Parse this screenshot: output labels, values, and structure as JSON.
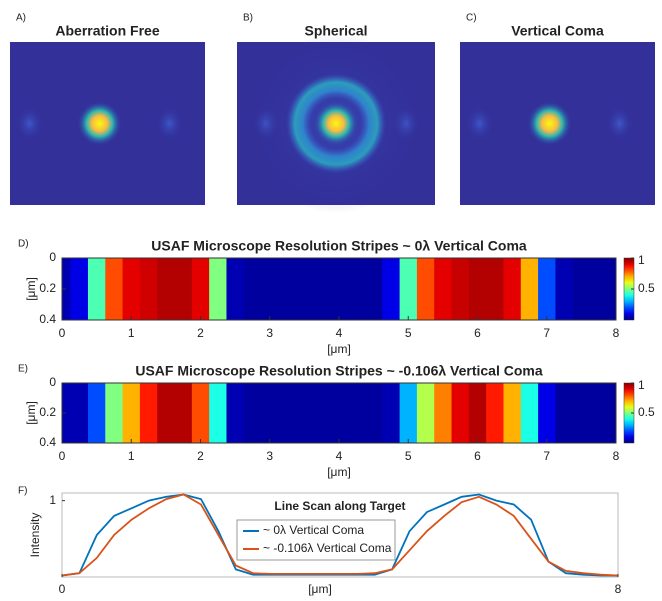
{
  "chart_data": [
    {
      "type": "image",
      "panel": "A)",
      "title": "Aberration Free"
    },
    {
      "type": "image",
      "panel": "B)",
      "title": "Spherical"
    },
    {
      "type": "image",
      "panel": "C)",
      "title": "Vertical Coma"
    },
    {
      "type": "heatmap",
      "panel": "D)",
      "title": "USAF Microscope Resolution Stripes ~ 0λ Vertical Coma",
      "xlabel": "[μm]",
      "ylabel": "[μm]",
      "x": [
        0,
        0.25,
        0.5,
        0.75,
        1,
        1.25,
        1.5,
        1.75,
        2,
        2.25,
        2.5,
        2.75,
        3,
        3.25,
        3.5,
        3.75,
        4,
        4.25,
        4.5,
        4.75,
        5,
        5.25,
        5.5,
        5.75,
        6,
        6.25,
        6.5,
        6.75,
        7,
        7.25,
        7.5,
        7.75,
        8
      ],
      "values": [
        0.05,
        0.1,
        0.45,
        0.8,
        0.9,
        0.92,
        0.95,
        0.95,
        0.9,
        0.5,
        0.05,
        0.03,
        0.03,
        0.03,
        0.03,
        0.03,
        0.03,
        0.03,
        0.03,
        0.1,
        0.45,
        0.8,
        0.9,
        0.93,
        0.95,
        0.95,
        0.9,
        0.7,
        0.2,
        0.05,
        0.03,
        0.03,
        0.03
      ],
      "xlim": [
        0,
        8
      ],
      "xticks": [
        0,
        1,
        2,
        3,
        4,
        5,
        6,
        7,
        8
      ],
      "ylim": [
        0,
        0.4
      ],
      "yticks": [
        0,
        0.2,
        0.4
      ],
      "clim": [
        0,
        1
      ],
      "cticks": [
        0.5,
        1
      ]
    },
    {
      "type": "heatmap",
      "panel": "E)",
      "title": "USAF Microscope Resolution Stripes ~ -0.106λ Vertical Coma",
      "xlabel": "[μm]",
      "ylabel": "[μm]",
      "x": [
        0,
        0.25,
        0.5,
        0.75,
        1,
        1.25,
        1.5,
        1.75,
        2,
        2.25,
        2.5,
        2.75,
        3,
        3.25,
        3.5,
        3.75,
        4,
        4.25,
        4.5,
        4.75,
        5,
        5.25,
        5.5,
        5.75,
        6,
        6.25,
        6.5,
        6.75,
        7,
        7.25,
        7.5,
        7.75,
        8
      ],
      "values": [
        0.05,
        0.05,
        0.2,
        0.5,
        0.7,
        0.85,
        0.95,
        0.95,
        0.8,
        0.4,
        0.05,
        0.03,
        0.03,
        0.03,
        0.03,
        0.03,
        0.03,
        0.03,
        0.03,
        0.05,
        0.3,
        0.55,
        0.75,
        0.9,
        0.95,
        0.85,
        0.7,
        0.4,
        0.1,
        0.03,
        0.03,
        0.03,
        0.03
      ],
      "xlim": [
        0,
        8
      ],
      "xticks": [
        0,
        1,
        2,
        3,
        4,
        5,
        6,
        7,
        8
      ],
      "ylim": [
        0,
        0.4
      ],
      "yticks": [
        0,
        0.2,
        0.4
      ],
      "clim": [
        0,
        1
      ],
      "cticks": [
        0.5,
        1
      ]
    },
    {
      "type": "line",
      "panel": "F)",
      "title": "Line Scan along Target",
      "xlabel": "[μm]",
      "ylabel": "Intensity",
      "x": [
        0,
        0.25,
        0.5,
        0.75,
        1,
        1.25,
        1.5,
        1.75,
        2,
        2.25,
        2.5,
        2.75,
        3,
        3.25,
        3.5,
        3.75,
        4,
        4.25,
        4.5,
        4.75,
        5,
        5.25,
        5.5,
        5.75,
        6,
        6.25,
        6.5,
        6.75,
        7,
        7.25,
        7.5,
        7.75,
        8
      ],
      "series": [
        {
          "name": "~ 0λ Vertical Coma",
          "color": "#0072bd",
          "values": [
            0.02,
            0.05,
            0.55,
            0.8,
            0.9,
            1.0,
            1.05,
            1.08,
            1.02,
            0.6,
            0.1,
            0.03,
            0.03,
            0.03,
            0.03,
            0.03,
            0.03,
            0.03,
            0.03,
            0.1,
            0.6,
            0.85,
            0.95,
            1.05,
            1.08,
            1.0,
            0.95,
            0.75,
            0.2,
            0.05,
            0.03,
            0.02,
            0.02
          ]
        },
        {
          "name": "~ -0.106λ Vertical Coma",
          "color": "#d95319",
          "values": [
            0.02,
            0.05,
            0.25,
            0.55,
            0.75,
            0.9,
            1.02,
            1.08,
            0.95,
            0.55,
            0.15,
            0.05,
            0.04,
            0.04,
            0.04,
            0.04,
            0.04,
            0.04,
            0.05,
            0.1,
            0.35,
            0.6,
            0.8,
            0.98,
            1.05,
            0.95,
            0.8,
            0.5,
            0.2,
            0.08,
            0.05,
            0.03,
            0.02
          ]
        }
      ],
      "xlim": [
        0,
        8
      ],
      "xticks": [
        0,
        8
      ],
      "ylim": [
        0,
        1.1
      ],
      "yticks": [
        1
      ]
    }
  ]
}
